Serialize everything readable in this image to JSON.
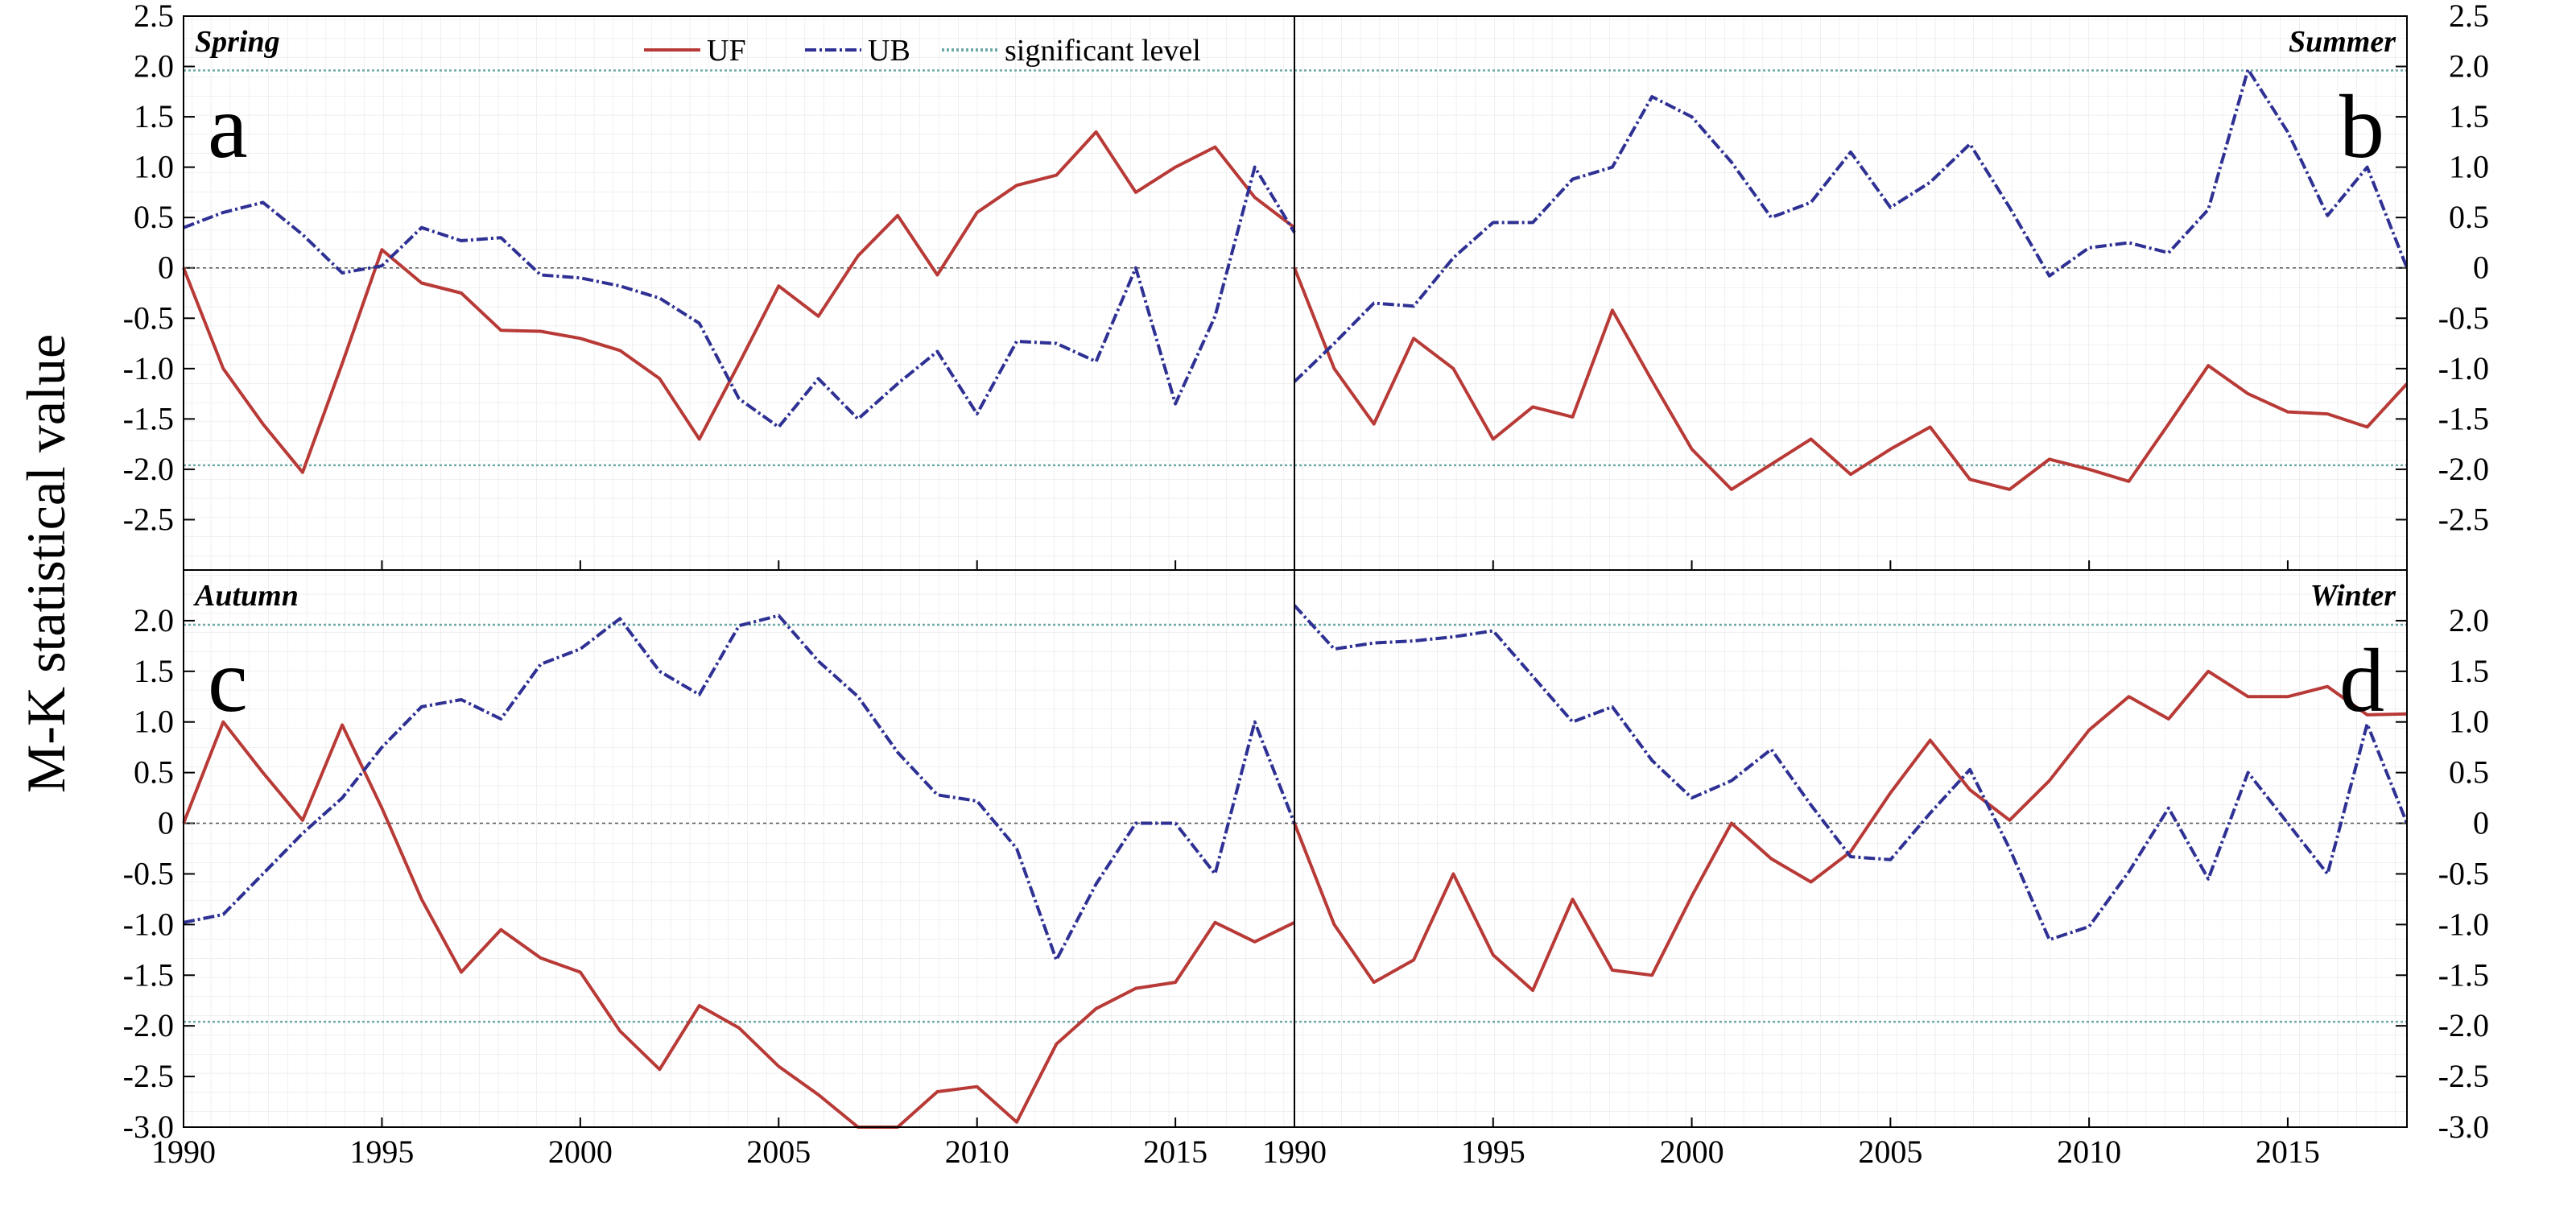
{
  "figure": {
    "ylabel": "M-K statistical value",
    "legend": [
      "UF",
      "UB",
      "significant level"
    ]
  },
  "chart_data": [
    {
      "type": "line",
      "panel": "a",
      "title": "Spring",
      "xlabel": "",
      "ylabel": "M-K statistical value",
      "xlim": [
        1990,
        2018
      ],
      "ylim": [
        -3.0,
        2.5
      ],
      "x_ticks": [
        1990,
        1995,
        2000,
        2005,
        2010,
        2015
      ],
      "y_tick_labels": [
        "2.5",
        "2.0",
        "1.5",
        "1.0",
        "0.5",
        "0",
        "-0.5",
        "-1.0",
        "-1.5",
        "-2.0",
        "-2.5"
      ],
      "significant_level": 1.96,
      "x": [
        1990,
        1991,
        1992,
        1993,
        1994,
        1995,
        1996,
        1997,
        1998,
        1999,
        2000,
        2001,
        2002,
        2003,
        2004,
        2005,
        2006,
        2007,
        2008,
        2009,
        2010,
        2011,
        2012,
        2013,
        2014,
        2015,
        2016,
        2017,
        2018
      ],
      "series": [
        {
          "name": "UF",
          "color": "#b83a37",
          "values": [
            0,
            -1.0,
            -1.55,
            -2.03,
            -0.95,
            0.18,
            -0.15,
            -0.25,
            -0.62,
            -0.63,
            -0.7,
            -0.82,
            -1.1,
            -1.7,
            -0.95,
            -0.18,
            -0.48,
            0.12,
            0.52,
            -0.07,
            0.55,
            0.82,
            0.92,
            1.35,
            0.75,
            1.0,
            1.2,
            0.7,
            0.4
          ]
        },
        {
          "name": "UB",
          "color": "#2e3193",
          "values": [
            0.4,
            0.55,
            0.65,
            0.33,
            -0.05,
            0.02,
            0.4,
            0.27,
            0.3,
            -0.07,
            -0.1,
            -0.18,
            -0.3,
            -0.55,
            -1.3,
            -1.58,
            -1.1,
            -1.5,
            -1.15,
            -0.83,
            -1.45,
            -0.73,
            -0.75,
            -0.93,
            0.0,
            -1.35,
            -0.48,
            1.0,
            0.35
          ]
        }
      ]
    },
    {
      "type": "line",
      "panel": "b",
      "title": "Summer",
      "xlabel": "",
      "ylabel": "",
      "xlim": [
        1990,
        2018
      ],
      "ylim": [
        -3.0,
        2.5
      ],
      "x_ticks": [
        1990,
        1995,
        2000,
        2005,
        2010,
        2015
      ],
      "y_tick_labels": [
        "2.5",
        "2.0",
        "1.5",
        "1.0",
        "0.5",
        "0",
        "-0.5",
        "-1.0",
        "-1.5",
        "-2.0",
        "-2.5"
      ],
      "significant_level": 1.96,
      "x": [
        1990,
        1991,
        1992,
        1993,
        1994,
        1995,
        1996,
        1997,
        1998,
        1999,
        2000,
        2001,
        2002,
        2003,
        2004,
        2005,
        2006,
        2007,
        2008,
        2009,
        2010,
        2011,
        2012,
        2013,
        2014,
        2015,
        2016,
        2017,
        2018
      ],
      "series": [
        {
          "name": "UF",
          "color": "#b83a37",
          "values": [
            0,
            -1.0,
            -1.55,
            -0.7,
            -1.0,
            -1.7,
            -1.38,
            -1.48,
            -0.42,
            -1.12,
            -1.8,
            -2.2,
            -1.95,
            -1.7,
            -2.05,
            -1.8,
            -1.58,
            -2.1,
            -2.2,
            -1.9,
            -2.0,
            -2.12,
            -1.55,
            -0.97,
            -1.25,
            -1.43,
            -1.45,
            -1.58,
            -1.15
          ]
        },
        {
          "name": "UB",
          "color": "#2e3193",
          "values": [
            -1.13,
            -0.75,
            -0.35,
            -0.38,
            0.1,
            0.45,
            0.45,
            0.88,
            1.0,
            1.7,
            1.5,
            1.05,
            0.5,
            0.65,
            1.15,
            0.6,
            0.85,
            1.23,
            0.6,
            -0.08,
            0.2,
            0.25,
            0.15,
            0.58,
            1.97,
            1.35,
            0.52,
            1.0,
            0.0
          ]
        }
      ]
    },
    {
      "type": "line",
      "panel": "c",
      "title": "Autumn",
      "xlabel": "",
      "ylabel": "M-K statistical value",
      "xlim": [
        1990,
        2018
      ],
      "ylim": [
        -3.0,
        2.5
      ],
      "x_ticks": [
        1990,
        1995,
        2000,
        2005,
        2010,
        2015
      ],
      "y_tick_labels": [
        "2.0",
        "1.5",
        "1.0",
        "0.5",
        "0",
        "-0.5",
        "-1.0",
        "-1.5",
        "-2.0",
        "-2.5",
        "-3.0"
      ],
      "significant_level": 1.96,
      "x": [
        1990,
        1991,
        1992,
        1993,
        1994,
        1995,
        1996,
        1997,
        1998,
        1999,
        2000,
        2001,
        2002,
        2003,
        2004,
        2005,
        2006,
        2007,
        2008,
        2009,
        2010,
        2011,
        2012,
        2013,
        2014,
        2015,
        2016,
        2017,
        2018
      ],
      "series": [
        {
          "name": "UF",
          "color": "#b83a37",
          "values": [
            0,
            1.0,
            0.5,
            0.03,
            0.97,
            0.15,
            -0.75,
            -1.47,
            -1.05,
            -1.33,
            -1.47,
            -2.05,
            -2.43,
            -1.8,
            -2.02,
            -2.4,
            -2.68,
            -3.0,
            -3.0,
            -2.65,
            -2.6,
            -2.95,
            -2.18,
            -1.83,
            -1.63,
            -1.57,
            -0.98,
            -1.17,
            -0.98
          ]
        },
        {
          "name": "UB",
          "color": "#2e3193",
          "values": [
            -0.98,
            -0.9,
            -0.5,
            -0.1,
            0.25,
            0.75,
            1.15,
            1.22,
            1.03,
            1.57,
            1.72,
            2.02,
            1.5,
            1.27,
            1.95,
            2.05,
            1.6,
            1.25,
            0.7,
            0.28,
            0.22,
            -0.25,
            -1.35,
            -0.6,
            0.0,
            0.0,
            -0.5,
            1.0,
            0.0
          ]
        }
      ]
    },
    {
      "type": "line",
      "panel": "d",
      "title": "Winter",
      "xlabel": "",
      "ylabel": "",
      "xlim": [
        1990,
        2018
      ],
      "ylim": [
        -3.0,
        2.5
      ],
      "x_ticks": [
        1990,
        1995,
        2000,
        2005,
        2010,
        2015
      ],
      "y_tick_labels": [
        "2.0",
        "1.5",
        "1.0",
        "0.5",
        "0",
        "-0.5",
        "-1.0",
        "-1.5",
        "-2.0",
        "-2.5",
        "-3.0"
      ],
      "significant_level": 1.96,
      "x": [
        1990,
        1991,
        1992,
        1993,
        1994,
        1995,
        1996,
        1997,
        1998,
        1999,
        2000,
        2001,
        2002,
        2003,
        2004,
        2005,
        2006,
        2007,
        2008,
        2009,
        2010,
        2011,
        2012,
        2013,
        2014,
        2015,
        2016,
        2017,
        2018
      ],
      "series": [
        {
          "name": "UF",
          "color": "#b83a37",
          "values": [
            0,
            -1.0,
            -1.57,
            -1.35,
            -0.5,
            -1.3,
            -1.65,
            -0.75,
            -1.45,
            -1.5,
            -0.72,
            0.0,
            -0.35,
            -0.58,
            -0.28,
            0.3,
            0.82,
            0.33,
            0.03,
            0.42,
            0.92,
            1.25,
            1.03,
            1.5,
            1.25,
            1.25,
            1.35,
            1.07,
            1.08
          ]
        },
        {
          "name": "UB",
          "color": "#2e3193",
          "values": [
            2.15,
            1.72,
            1.78,
            1.8,
            1.84,
            1.9,
            1.45,
            1.0,
            1.15,
            0.62,
            0.25,
            0.42,
            0.73,
            0.18,
            -0.33,
            -0.36,
            0.1,
            0.53,
            -0.25,
            -1.15,
            -1.02,
            -0.48,
            0.15,
            -0.55,
            0.5,
            0.0,
            -0.5,
            0.98,
            0.0
          ]
        }
      ]
    }
  ]
}
